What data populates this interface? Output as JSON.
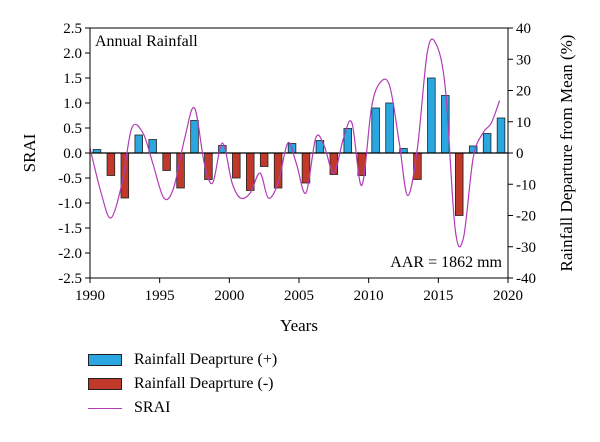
{
  "chart_data": {
    "type": "bar",
    "inside_title": "Annual Rainfall",
    "annotation": "AAR = 1862 mm",
    "xlabel": "Years",
    "ylabel_left": "SRAI",
    "ylabel_right": "Rainfall Departure from Mean (%)",
    "xlim": [
      1990,
      2020
    ],
    "ylim_left": [
      -2.5,
      2.5
    ],
    "ylim_right": [
      -40,
      40
    ],
    "x_ticks": [
      "1990",
      "1995",
      "2000",
      "2005",
      "2010",
      "2015",
      "2020"
    ],
    "y_left_ticks": [
      "2.5",
      "2.0",
      "1.5",
      "1.0",
      "0.5",
      "0.0",
      "-0.5",
      "-1.0",
      "-1.5",
      "-2.0",
      "-2.5"
    ],
    "y_right_ticks": [
      "40",
      "30",
      "20",
      "10",
      "0",
      "-10",
      "-20",
      "-30",
      "-40"
    ],
    "bar_years": [
      1990,
      1991,
      1992,
      1993,
      1994,
      1995,
      1996,
      1997,
      1998,
      1999,
      2000,
      2001,
      2002,
      2003,
      2004,
      2005,
      2006,
      2007,
      2008,
      2009,
      2010,
      2011,
      2012,
      2013,
      2014,
      2015,
      2016,
      2017,
      2018,
      2019
    ],
    "bar_values": [
      0.07,
      -0.45,
      -0.9,
      0.36,
      0.27,
      -0.35,
      -0.7,
      0.65,
      -0.53,
      0.15,
      -0.5,
      -0.75,
      -0.27,
      -0.7,
      0.19,
      -0.6,
      0.25,
      -0.43,
      0.49,
      -0.45,
      0.9,
      1.0,
      0.09,
      -0.53,
      1.5,
      1.15,
      -1.25,
      0.14,
      0.39,
      0.7
    ],
    "srai_x": [
      1990,
      1990.8,
      1991.5,
      1992.3,
      1993,
      1993.8,
      1994.5,
      1995.3,
      1996,
      1996.8,
      1997.5,
      1998.2,
      1998.8,
      1999.5,
      2000.2,
      2000.8,
      2001.5,
      2002.2,
      2002.8,
      2003.5,
      2004.2,
      2004.8,
      2005.5,
      2006.2,
      2006.8,
      2007.5,
      2008.2,
      2008.8,
      2009.5,
      2010.2,
      2010.8,
      2011.5,
      2012.2,
      2012.8,
      2013.5,
      2014.2,
      2014.8,
      2015.5,
      2016.2,
      2016.8,
      2017.5,
      2018.2,
      2018.8,
      2019.4
    ],
    "srai_y": [
      0.1,
      -0.8,
      -1.3,
      -0.6,
      0.5,
      0.4,
      -0.2,
      -0.9,
      -0.7,
      0.3,
      0.9,
      -0.2,
      -0.6,
      0.2,
      -0.6,
      -0.9,
      -0.8,
      -0.4,
      -0.9,
      -0.6,
      0.2,
      -0.2,
      -0.8,
      0.3,
      0.15,
      -0.4,
      0.3,
      0.6,
      -0.65,
      0.9,
      1.4,
      1.35,
      0.2,
      -0.85,
      0.1,
      2.0,
      2.2,
      1.3,
      -1.5,
      -1.7,
      -0.1,
      0.4,
      0.6,
      1.05
    ]
  },
  "legend": {
    "positive_label": "Rainfall Deaprture (+)",
    "negative_label": "Rainfall Deaprture (-)",
    "line_label": "SRAI"
  },
  "colors": {
    "positive_bar": "#2aa7e0",
    "negative_bar": "#c0392b",
    "line": "#b23cb7",
    "bar_edge": "#222222"
  }
}
